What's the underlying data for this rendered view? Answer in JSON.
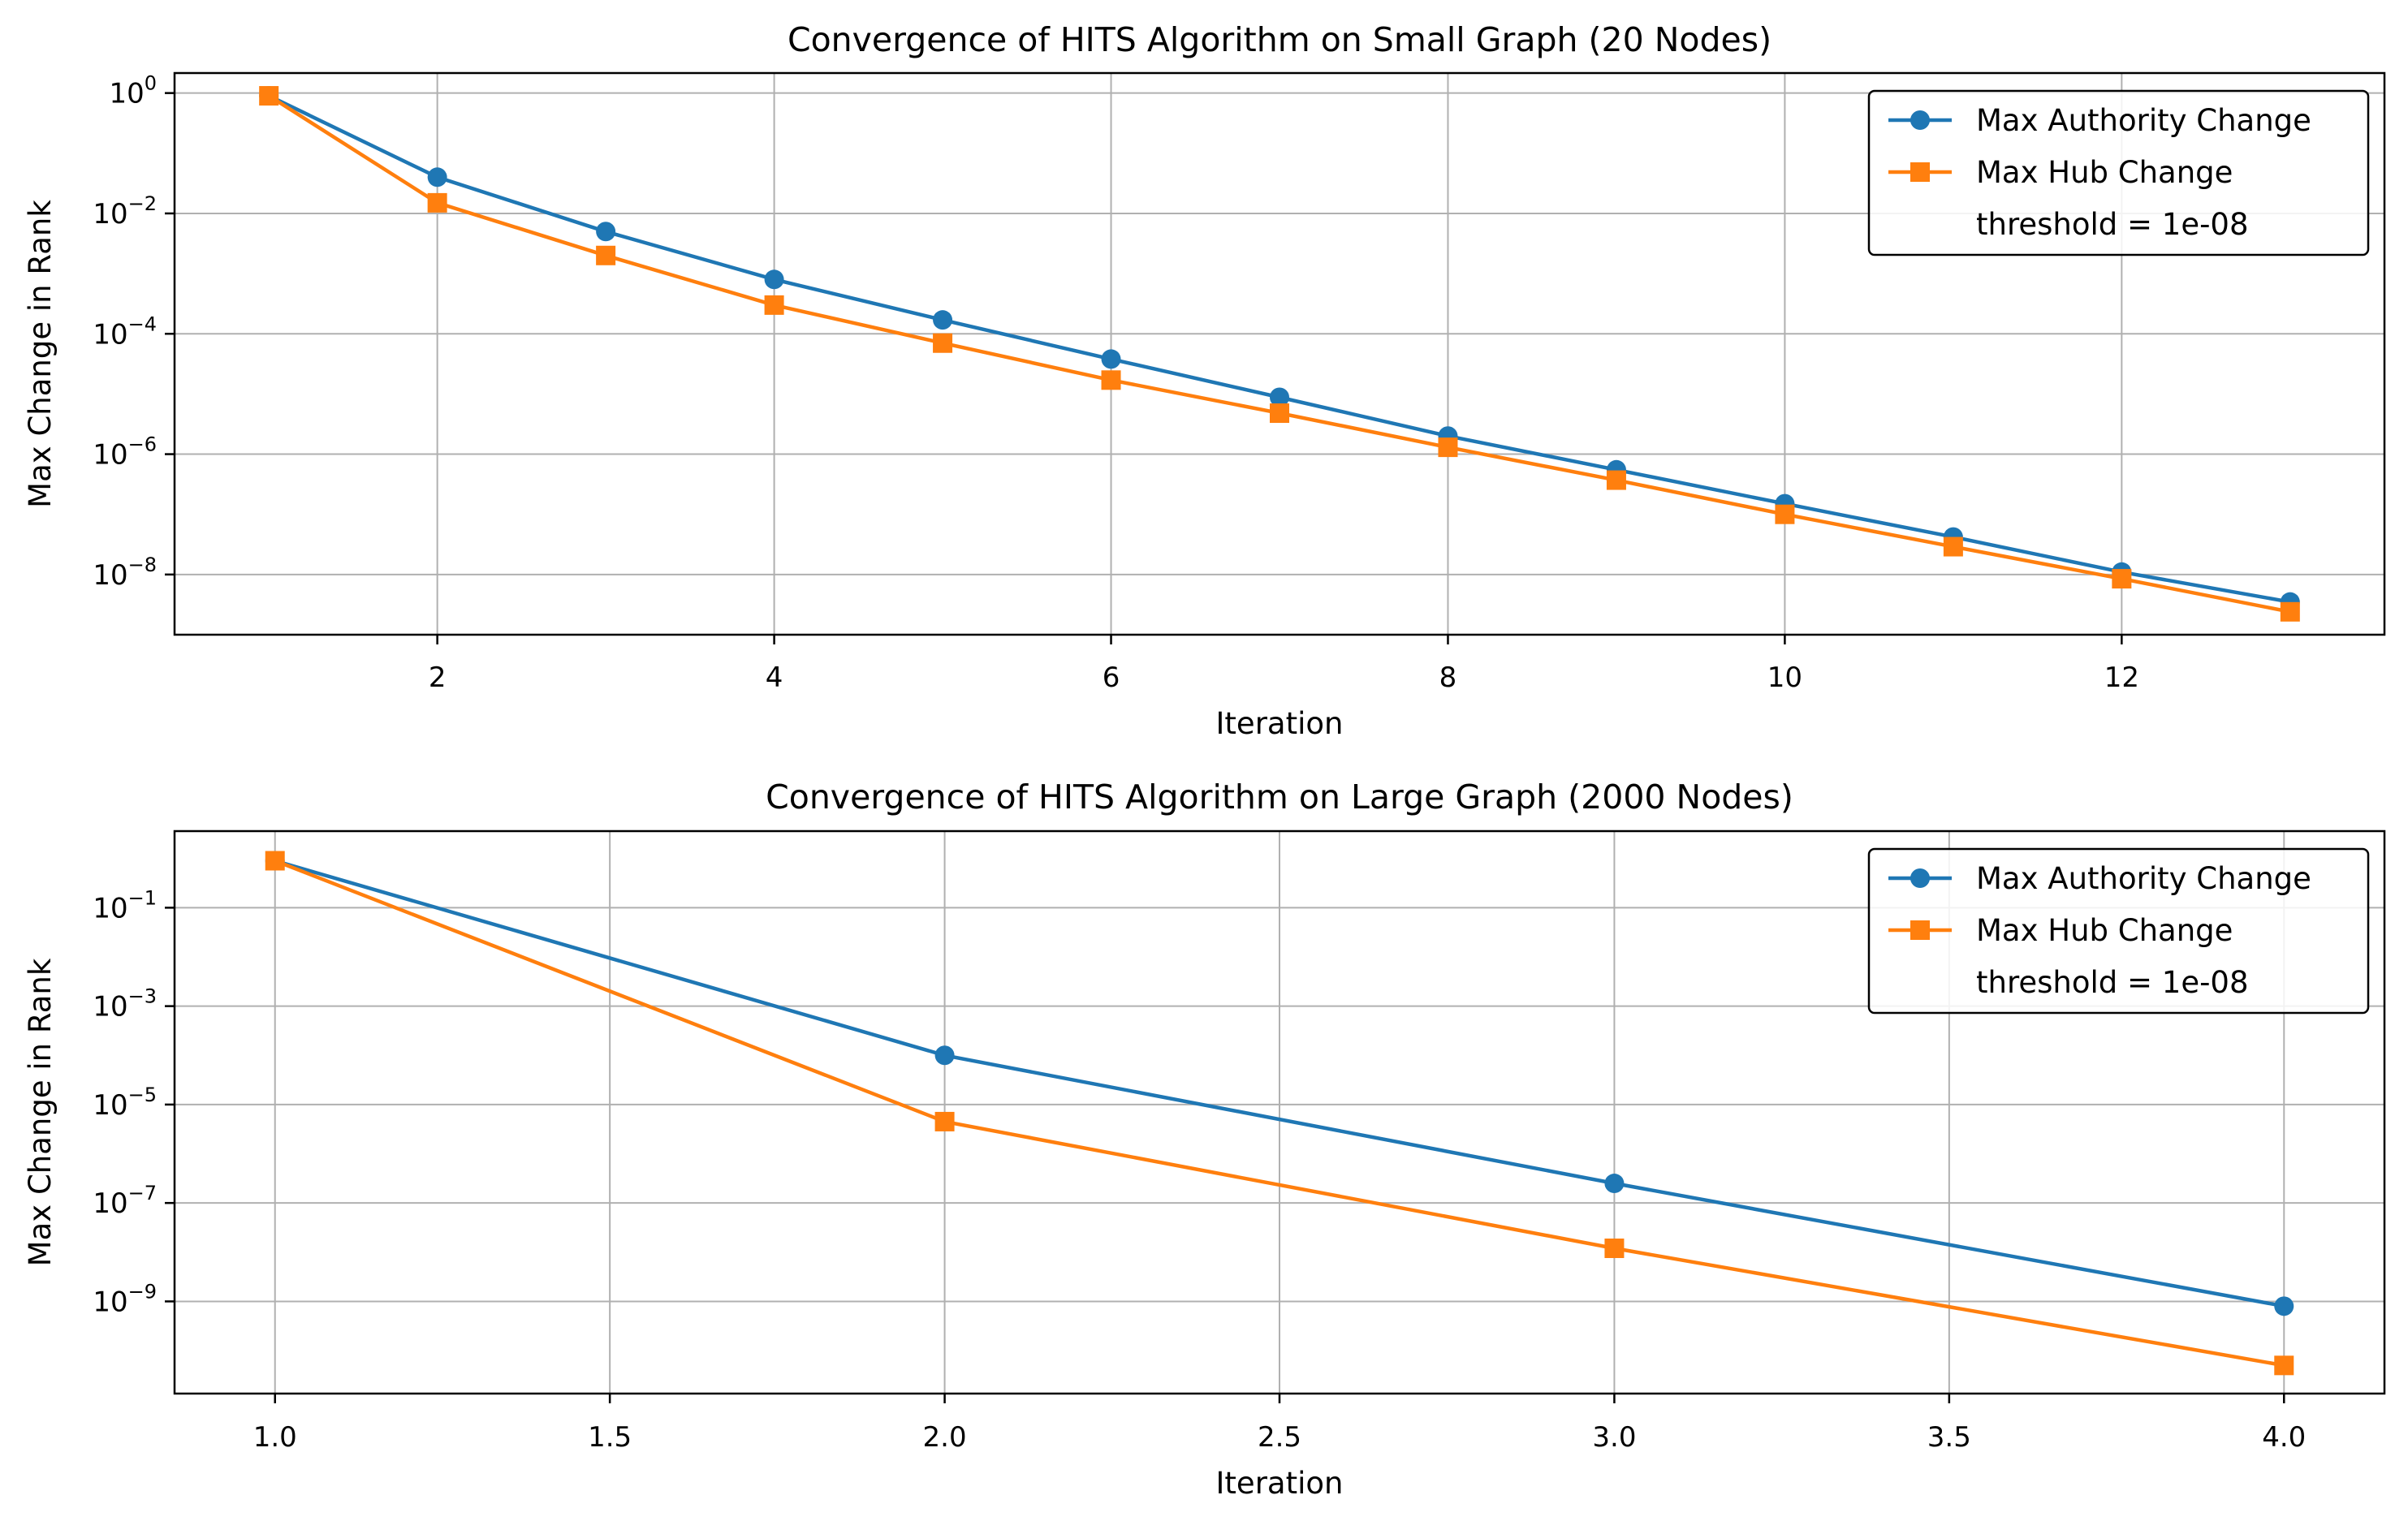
{
  "chart_data": [
    {
      "type": "line",
      "title": "Convergence of HITS Algorithm on Small Graph (20 Nodes)",
      "xlabel": "Iteration",
      "ylabel": "Max Change in Rank",
      "yscale": "log",
      "grid": true,
      "legend_position": "top-right",
      "xlim": [
        0.44,
        13.56
      ],
      "ylim": [
        1e-09,
        2.15
      ],
      "xticks": [
        2,
        4,
        6,
        8,
        10,
        12
      ],
      "xtick_labels": [
        "2",
        "4",
        "6",
        "8",
        "10",
        "12"
      ],
      "yticks": [
        1,
        0.01,
        0.0001,
        1e-06,
        1e-08
      ],
      "ytick_base": "10",
      "ytick_exponents": [
        "0",
        "−2",
        "−4",
        "−6",
        "−8"
      ],
      "x": [
        1,
        2,
        3,
        4,
        5,
        6,
        7,
        8,
        9,
        10,
        11,
        12,
        13
      ],
      "series": [
        {
          "name": "Max Authority Change",
          "marker": "circle",
          "color": "#1f77b4",
          "values": [
            0.9,
            0.04,
            0.005,
            0.0008,
            0.00017,
            3.8e-05,
            8.8e-06,
            2e-06,
            5.5e-07,
            1.5e-07,
            4.2e-08,
            1.1e-08,
            3.5e-09
          ]
        },
        {
          "name": "Max Hub Change",
          "marker": "square",
          "color": "#ff7f0e",
          "values": [
            0.9,
            0.015,
            0.002,
            0.0003,
            7e-05,
            1.7e-05,
            4.8e-06,
            1.3e-06,
            3.7e-07,
            1e-07,
            2.9e-08,
            8.5e-09,
            2.4e-09
          ]
        }
      ],
      "legend_extra": "threshold = 1e-08"
    },
    {
      "type": "line",
      "title": "Convergence of HITS Algorithm on Large Graph (2000 Nodes)",
      "xlabel": "Iteration",
      "ylabel": "Max Change in Rank",
      "yscale": "log",
      "grid": true,
      "legend_position": "top-right",
      "xlim": [
        0.85,
        4.15
      ],
      "ylim": [
        1.34e-11,
        3.6
      ],
      "xticks": [
        1.0,
        1.5,
        2.0,
        2.5,
        3.0,
        3.5,
        4.0
      ],
      "xtick_labels": [
        "1.0",
        "1.5",
        "2.0",
        "2.5",
        "3.0",
        "3.5",
        "4.0"
      ],
      "yticks": [
        0.1,
        0.001,
        1e-05,
        1e-07,
        1e-09
      ],
      "ytick_base": "10",
      "ytick_exponents": [
        "−1",
        "−3",
        "−5",
        "−7",
        "−9"
      ],
      "x": [
        1,
        2,
        3,
        4
      ],
      "series": [
        {
          "name": "Max Authority Change",
          "marker": "circle",
          "color": "#1f77b4",
          "values": [
            0.9,
            0.0001,
            2.5e-07,
            8e-10
          ]
        },
        {
          "name": "Max Hub Change",
          "marker": "square",
          "color": "#ff7f0e",
          "values": [
            0.9,
            4.5e-06,
            1.2e-08,
            5e-11
          ]
        }
      ],
      "legend_extra": "threshold = 1e-08"
    }
  ]
}
